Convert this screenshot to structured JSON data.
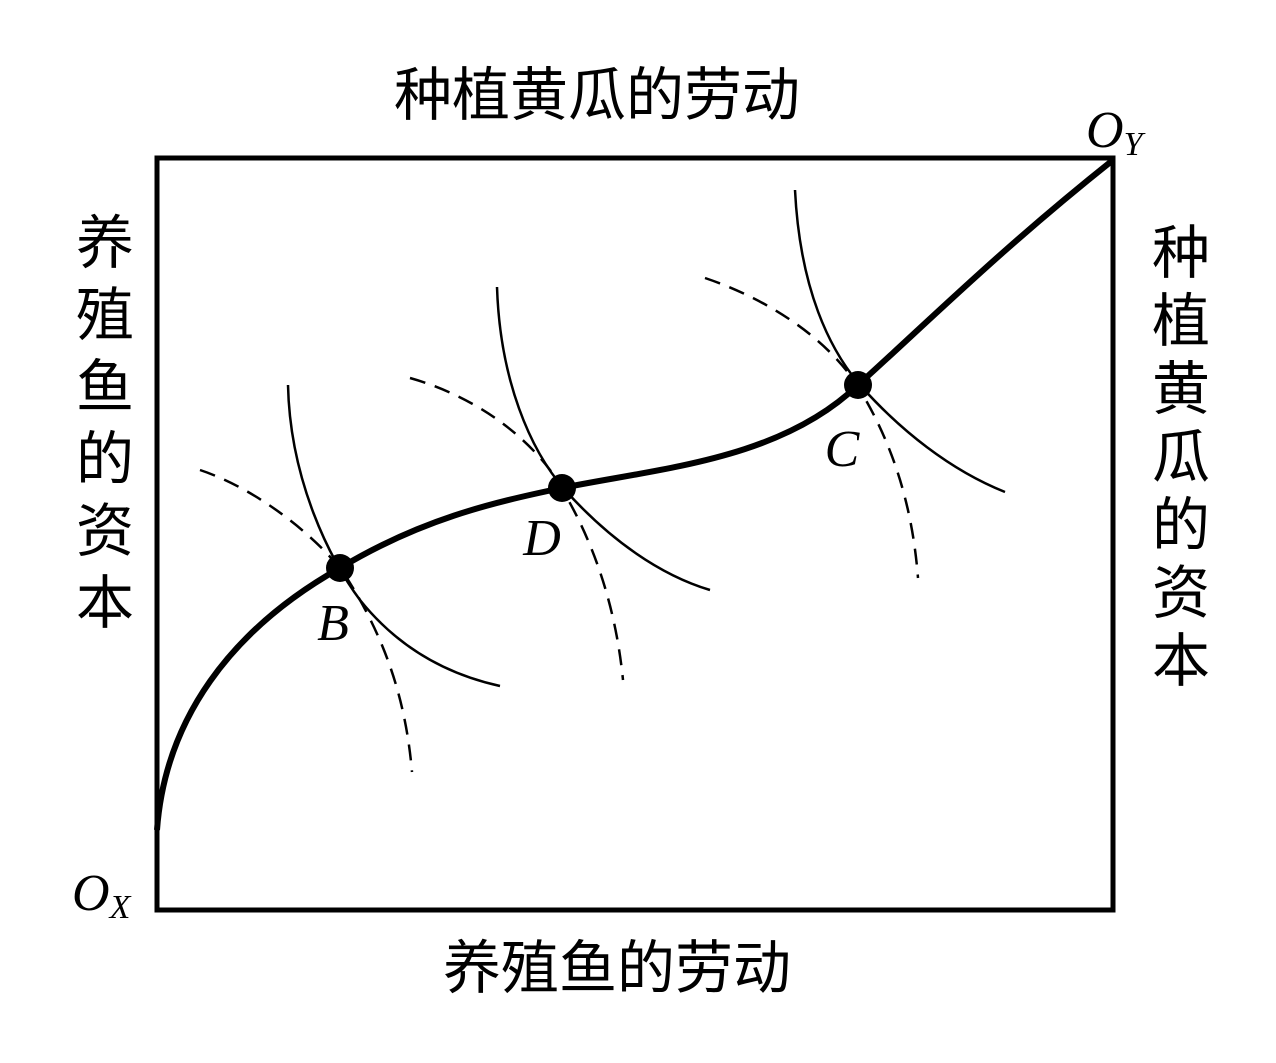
{
  "axes": {
    "top": "种植黄瓜的劳动",
    "bottom": "养殖鱼的劳动",
    "left": "养殖鱼的资本",
    "right": "种植黄瓜的资本"
  },
  "origins": [
    {
      "label": "O",
      "subscript": "X"
    },
    {
      "label": "O",
      "subscript": "Y"
    }
  ],
  "points": [
    {
      "label": "B"
    },
    {
      "label": "D"
    },
    {
      "label": "C"
    }
  ]
}
